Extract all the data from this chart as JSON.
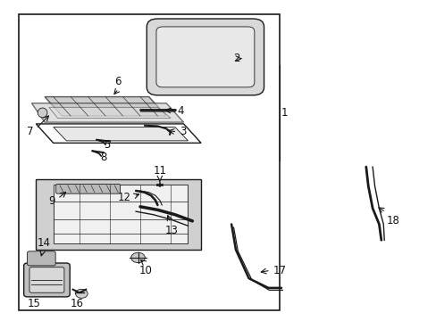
{
  "background_color": "#ffffff",
  "line_color": "#1a1a1a",
  "label_fontsize": 8.5,
  "label_color": "#111111",
  "parts": [
    {
      "id": "1"
    },
    {
      "id": "2"
    },
    {
      "id": "3"
    },
    {
      "id": "4"
    },
    {
      "id": "5"
    },
    {
      "id": "6"
    },
    {
      "id": "7"
    },
    {
      "id": "8"
    },
    {
      "id": "9"
    },
    {
      "id": "10"
    },
    {
      "id": "11"
    },
    {
      "id": "12"
    },
    {
      "id": "13"
    },
    {
      "id": "14"
    },
    {
      "id": "15"
    },
    {
      "id": "16"
    },
    {
      "id": "17"
    },
    {
      "id": "18"
    }
  ]
}
